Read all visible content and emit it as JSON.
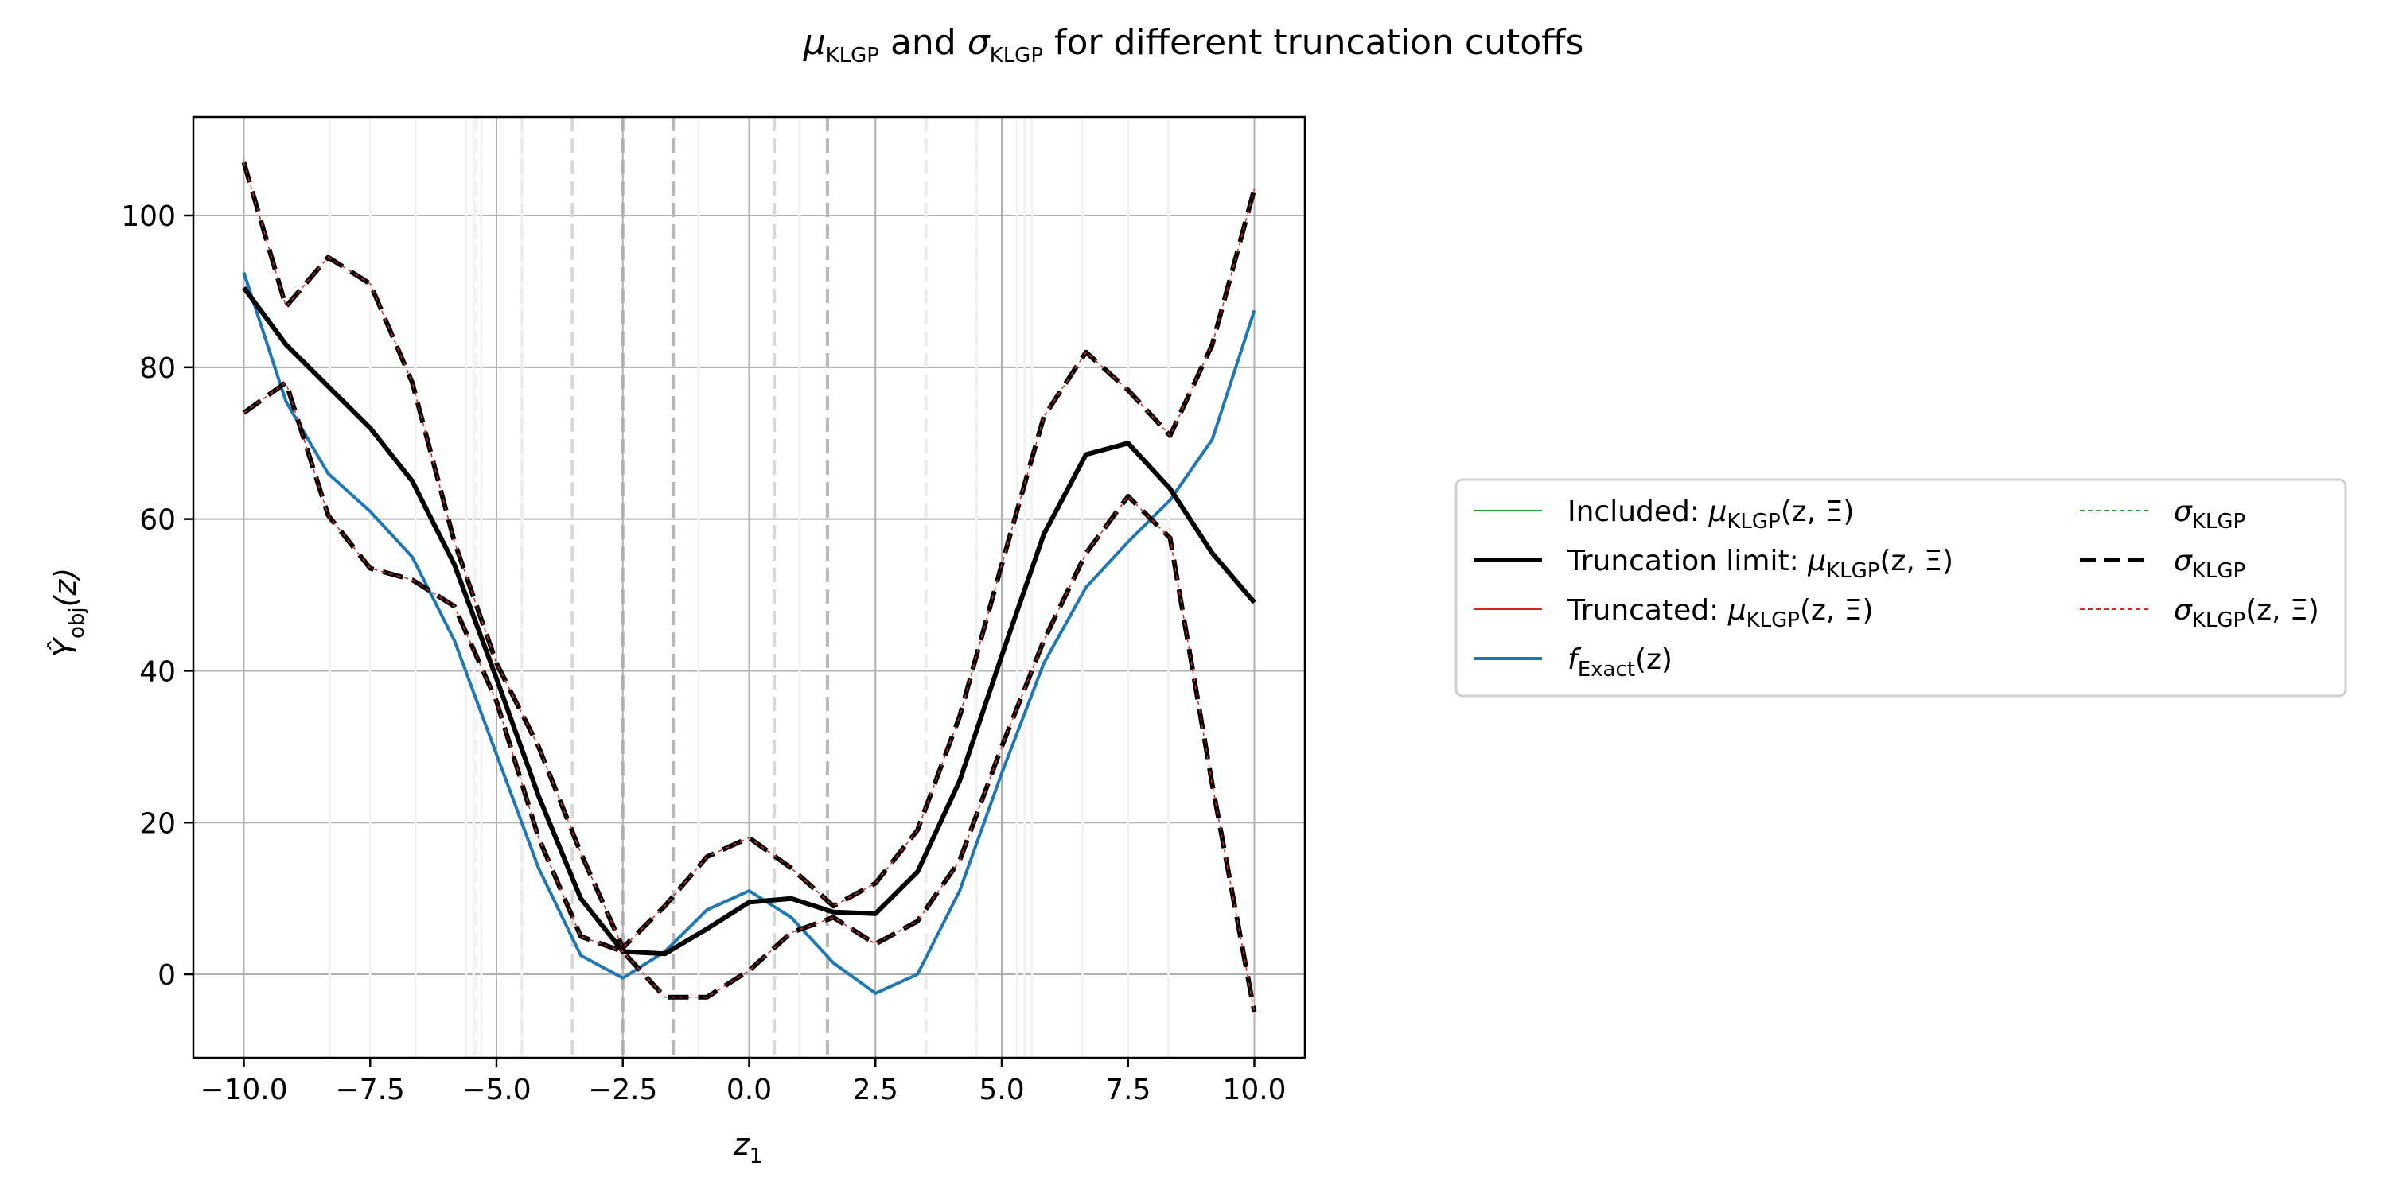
{
  "chart_data": {
    "type": "line",
    "title": {
      "mu": "μ",
      "mu_sub": "KLGP",
      "mid": " and ",
      "sigma": "σ",
      "sigma_sub": "KLGP",
      "rest": " for different truncation cutoffs"
    },
    "xlabel": {
      "base": "z",
      "sub": "1"
    },
    "ylabel": {
      "base": "Ŷ",
      "sub": "obj",
      "rest": "(z)"
    },
    "xlim": [
      -11,
      11
    ],
    "ylim": [
      -11,
      113
    ],
    "xticks": [
      -10.0,
      -7.5,
      -5.0,
      -2.5,
      0.0,
      2.5,
      5.0,
      7.5,
      10.0
    ],
    "xtick_labels": [
      "−10.0",
      "−7.5",
      "−5.0",
      "−2.5",
      "0.0",
      "2.5",
      "5.0",
      "7.5",
      "10.0"
    ],
    "yticks": [
      0,
      20,
      40,
      60,
      80,
      100
    ],
    "ytick_labels": [
      "0",
      "20",
      "40",
      "60",
      "80",
      "100"
    ],
    "grid": true,
    "legend_position": "right-outside",
    "vertical_lines": {
      "light_solid": [
        -8.3,
        -7.5,
        -6.6,
        -5.6,
        -5.45,
        -5.3,
        -4.5,
        -1.0,
        1.0,
        4.5,
        5.3,
        5.45,
        5.6,
        6.6,
        7.5,
        8.3
      ],
      "dashed": [
        {
          "x": -2.5,
          "color": "#b0b0b0"
        },
        {
          "x": -1.5,
          "color": "#b8b8b8"
        },
        {
          "x": 1.55,
          "color": "#b8b8b8"
        },
        {
          "x": -3.5,
          "color": "#d8d8d8"
        },
        {
          "x": 0.5,
          "color": "#d8d8d8"
        },
        {
          "x": -4.5,
          "color": "#ececec"
        },
        {
          "x": -5.4,
          "color": "#f2f2f2"
        },
        {
          "x": 3.5,
          "color": "#ececec"
        },
        {
          "x": 4.5,
          "color": "#f2f2f2"
        }
      ]
    },
    "x": [
      -10.0,
      -9.167,
      -8.333,
      -7.5,
      -6.667,
      -5.833,
      -5.0,
      -4.167,
      -3.333,
      -2.5,
      -1.667,
      -0.833,
      0.0,
      0.833,
      1.667,
      2.5,
      3.333,
      4.167,
      5.0,
      5.833,
      6.667,
      7.5,
      8.333,
      9.167,
      10.0
    ],
    "series": [
      {
        "name": "f_Exact(z)",
        "color": "#1f77b4",
        "width": 4,
        "dash": "",
        "values": [
          92.5,
          75.5,
          66,
          61,
          55,
          44,
          29,
          14,
          2.5,
          -0.5,
          3,
          8.5,
          11,
          7.5,
          1.5,
          -2.5,
          0,
          11,
          26.5,
          41,
          51,
          57,
          62.5,
          70.5,
          87.5
        ]
      },
      {
        "name": "Truncation limit: μ_KLGP(z, Ξ)",
        "color": "#000000",
        "width": 6,
        "dash": "",
        "values": [
          90.5,
          83,
          77.5,
          72,
          65,
          54,
          39,
          23.5,
          10,
          3,
          2.7,
          6,
          9.5,
          10,
          8.2,
          8,
          13.5,
          25.5,
          42,
          58,
          68.5,
          70,
          64,
          55.5,
          49
        ]
      },
      {
        "name": "upper σ band",
        "color": "#000000",
        "width": 6,
        "dash": "26,12",
        "values": [
          107,
          88,
          94.5,
          91,
          78,
          57,
          41,
          30,
          16,
          3.5,
          9,
          15.5,
          18,
          14,
          9,
          12,
          19,
          34,
          54,
          73.5,
          82,
          77,
          71,
          83,
          103.5
        ]
      },
      {
        "name": "lower σ band",
        "color": "#000000",
        "width": 6,
        "dash": "26,12",
        "values": [
          74,
          78,
          60.5,
          53.5,
          52,
          48.5,
          36,
          18,
          5,
          3,
          -3,
          -3,
          0.5,
          5.5,
          7.5,
          4,
          7,
          15,
          30,
          44,
          55.5,
          63,
          57.5,
          25,
          -5
        ]
      }
    ],
    "legend": {
      "col1": [
        {
          "label_base": "Included: ",
          "label_sym": "μ",
          "label_sub": "KLGP",
          "label_tail": "(z, Ξ)",
          "color": "#2ca02c",
          "width": 2,
          "dash": ""
        },
        {
          "label_base": "Truncation limit: ",
          "label_sym": "μ",
          "label_sub": "KLGP",
          "label_tail": "(z, Ξ)",
          "color": "#000000",
          "width": 6,
          "dash": ""
        },
        {
          "label_base": "Truncated: ",
          "label_sym": "μ",
          "label_sub": "KLGP",
          "label_tail": "(z, Ξ)",
          "color": "#d62728",
          "width": 2,
          "dash": ""
        },
        {
          "label_base": "",
          "label_sym": "f",
          "label_sub": "Exact",
          "label_tail": "(z)",
          "color": "#1f77b4",
          "width": 4,
          "dash": ""
        }
      ],
      "col2": [
        {
          "label_base": "",
          "label_sym": "σ",
          "label_sub": "KLGP",
          "label_tail": "",
          "color": "#2ca02c",
          "width": 2,
          "dash": "6,4"
        },
        {
          "label_base": "",
          "label_sym": "σ",
          "label_sub": "KLGP",
          "label_tail": "",
          "color": "#000000",
          "width": 6,
          "dash": "20,10"
        },
        {
          "label_base": "",
          "label_sym": "σ",
          "label_sub": "KLGP",
          "label_tail": "(z, Ξ)",
          "color": "#d62728",
          "width": 2,
          "dash": "6,4"
        }
      ]
    }
  }
}
